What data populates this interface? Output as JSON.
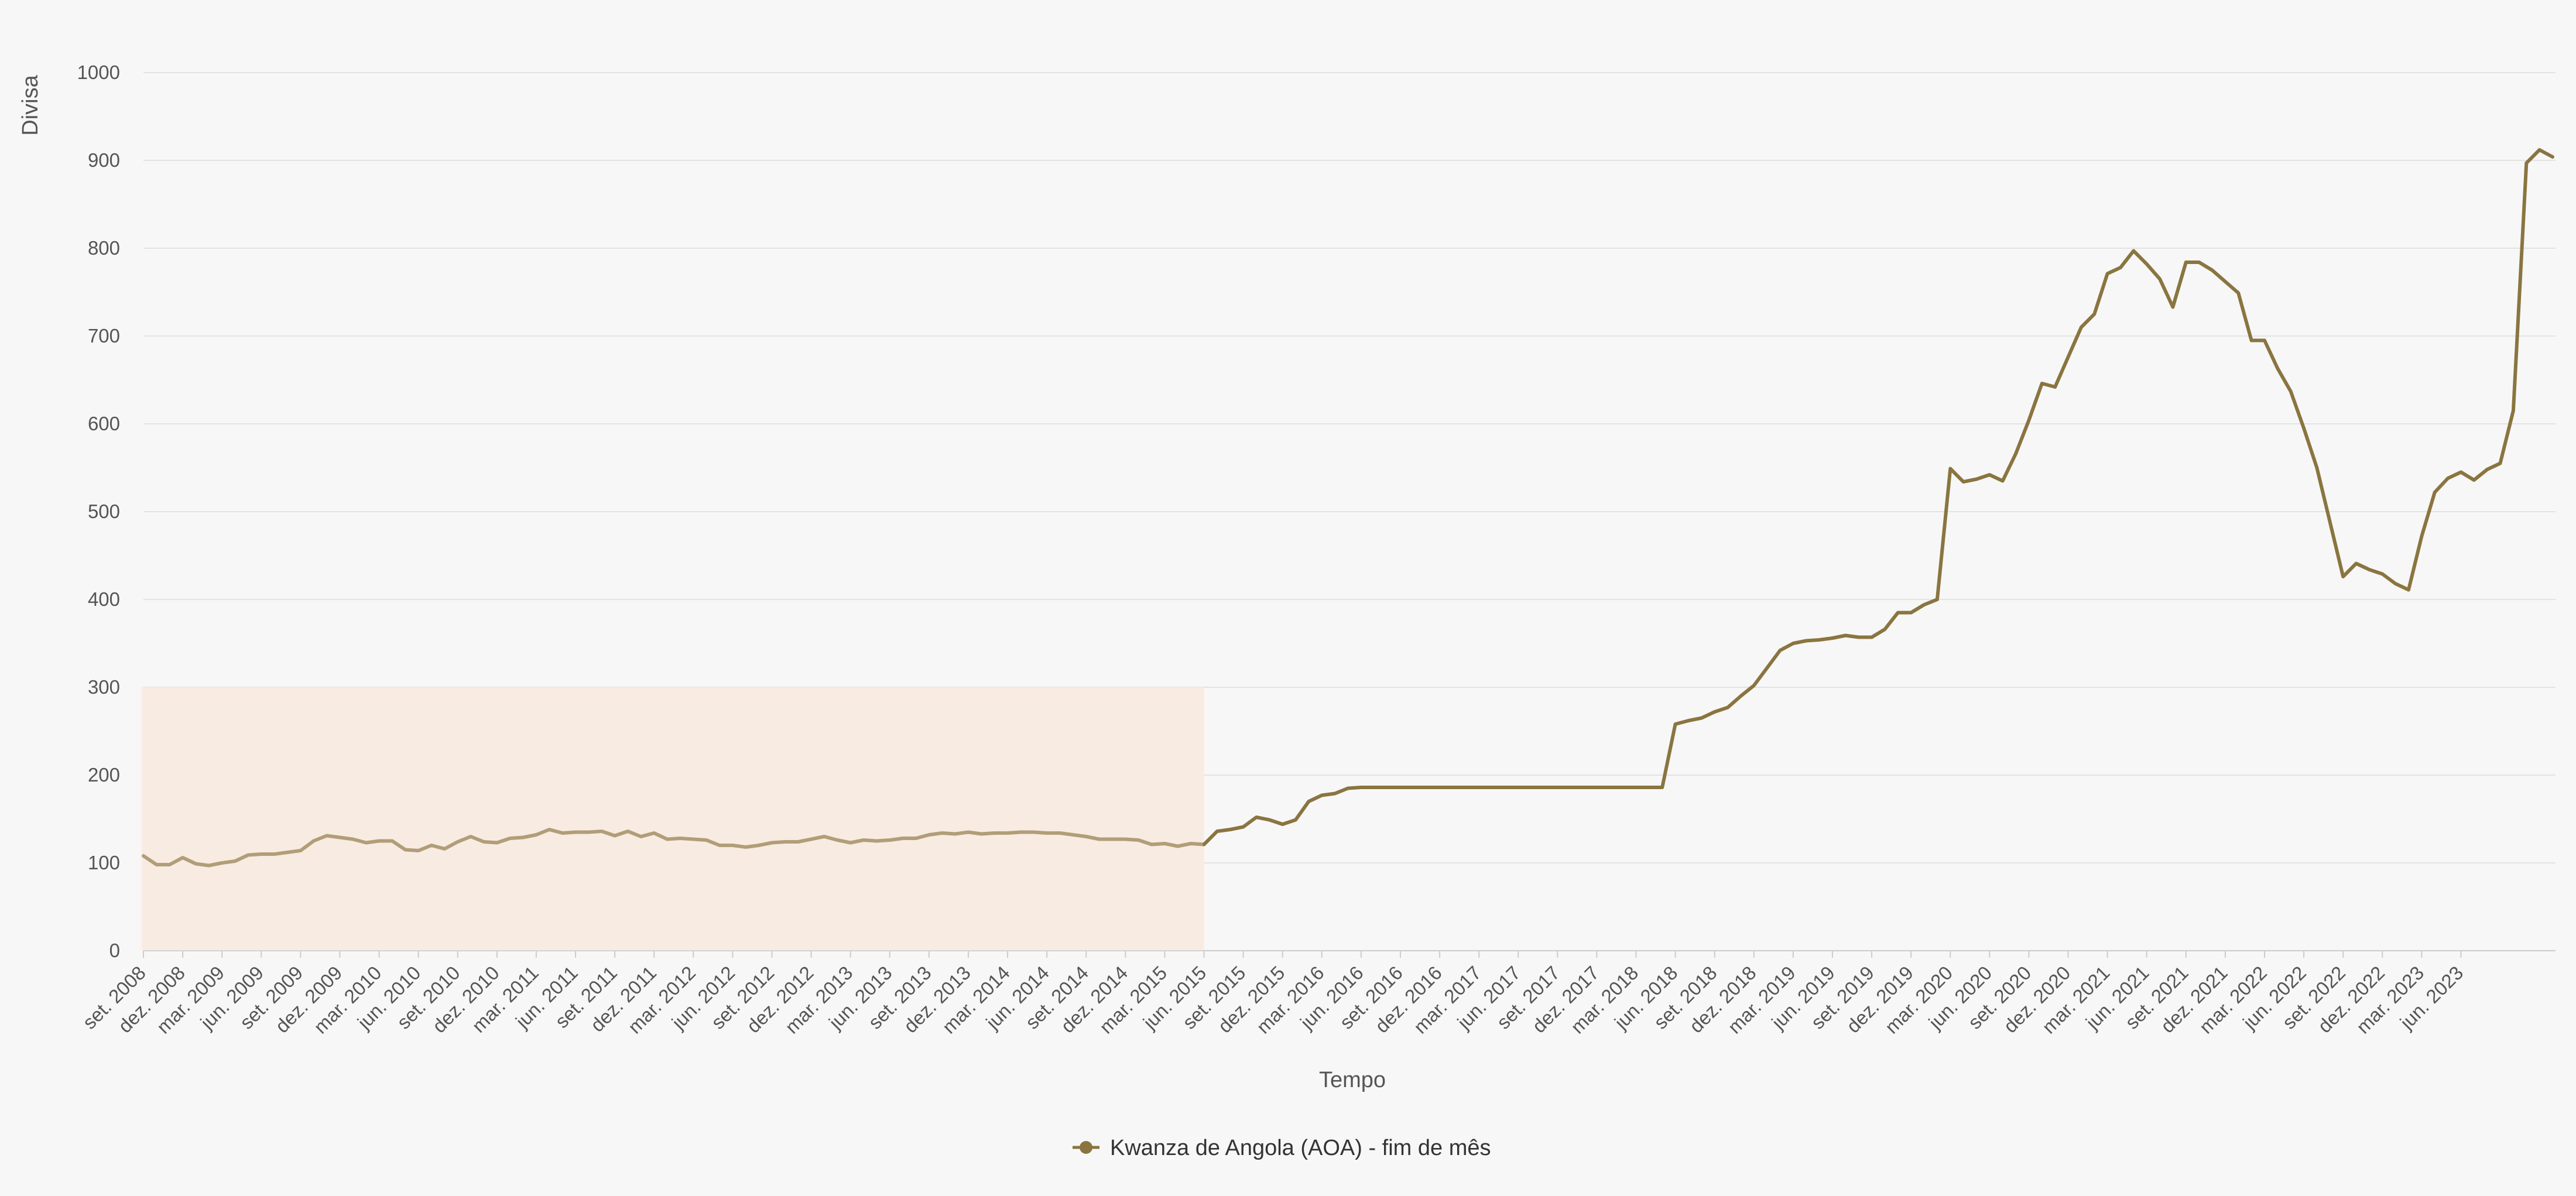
{
  "chart_data": {
    "type": "line",
    "xlabel": "Tempo",
    "ylabel": "Divisa",
    "ylim": [
      0,
      1000
    ],
    "yticks": [
      0,
      100,
      200,
      300,
      400,
      500,
      600,
      700,
      800,
      900,
      1000
    ],
    "grid": true,
    "legend_position": "bottom-center",
    "x_tick_labels": [
      "set. 2008",
      "dez. 2008",
      "mar. 2009",
      "jun. 2009",
      "set. 2009",
      "dez. 2009",
      "mar. 2010",
      "jun. 2010",
      "set. 2010",
      "dez. 2010",
      "mar. 2011",
      "jun. 2011",
      "set. 2011",
      "dez. 2011",
      "mar. 2012",
      "jun. 2012",
      "set. 2012",
      "dez. 2012",
      "mar. 2013",
      "jun. 2013",
      "set. 2013",
      "dez. 2013",
      "mar. 2014",
      "jun. 2014",
      "set. 2014",
      "dez. 2014",
      "mar. 2015",
      "jun. 2015",
      "set. 2015",
      "dez. 2015",
      "mar. 2016",
      "jun. 2016",
      "set. 2016",
      "dez. 2016",
      "mar. 2017",
      "jun. 2017",
      "set. 2017",
      "dez. 2017",
      "mar. 2018",
      "jun. 2018",
      "set. 2018",
      "dez. 2018",
      "mar. 2019",
      "jun. 2019",
      "set. 2019",
      "dez. 2019",
      "mar. 2020",
      "jun. 2020",
      "set. 2020",
      "dez. 2020",
      "mar. 2021",
      "jun. 2021",
      "set. 2021",
      "dez. 2021",
      "mar. 2022",
      "jun. 2022",
      "set. 2022",
      "dez. 2022",
      "mar. 2023",
      "jun. 2023"
    ],
    "shaded_range": {
      "x_start": "set. 2008",
      "x_end": "jun. 2015",
      "y_start": 0,
      "y_end": 300,
      "color": "#f8ece2"
    },
    "series": [
      {
        "name": "Kwanza de Angola (AOA) - fim de mês",
        "color": "#8a7540",
        "start": "set. 2008",
        "step": "month",
        "values": [
          108,
          98,
          98,
          106,
          99,
          97,
          100,
          102,
          109,
          110,
          110,
          112,
          114,
          125,
          131,
          129,
          127,
          123,
          125,
          125,
          115,
          114,
          120,
          116,
          124,
          130,
          124,
          123,
          128,
          129,
          132,
          138,
          134,
          135,
          135,
          136,
          131,
          136,
          130,
          134,
          127,
          128,
          127,
          126,
          120,
          120,
          118,
          120,
          123,
          124,
          124,
          127,
          130,
          126,
          123,
          126,
          125,
          126,
          128,
          128,
          132,
          134,
          133,
          135,
          133,
          134,
          134,
          135,
          135,
          134,
          134,
          132,
          130,
          127,
          127,
          127,
          126,
          121,
          122,
          119,
          122,
          121,
          136,
          138,
          141,
          152,
          149,
          144,
          149,
          170,
          177,
          179,
          185,
          186,
          186,
          186,
          186,
          186,
          186,
          186,
          186,
          186,
          186,
          186,
          186,
          186,
          186,
          186,
          186,
          186,
          186,
          186,
          186,
          186,
          186,
          186,
          186,
          258,
          262,
          265,
          272,
          277,
          290,
          302,
          322,
          342,
          350,
          353,
          354,
          356,
          359,
          357,
          357,
          366,
          385,
          385,
          394,
          400,
          549,
          534,
          537,
          542,
          535,
          566,
          604,
          646,
          642,
          676,
          710,
          725,
          771,
          778,
          797,
          782,
          765,
          733,
          784,
          784,
          775,
          762,
          749,
          695,
          695,
          663,
          637,
          595,
          550,
          488,
          426,
          441,
          434,
          429,
          418,
          411,
          472,
          522,
          538,
          545,
          536,
          548,
          555,
          615,
          897,
          912,
          904
        ]
      }
    ]
  }
}
